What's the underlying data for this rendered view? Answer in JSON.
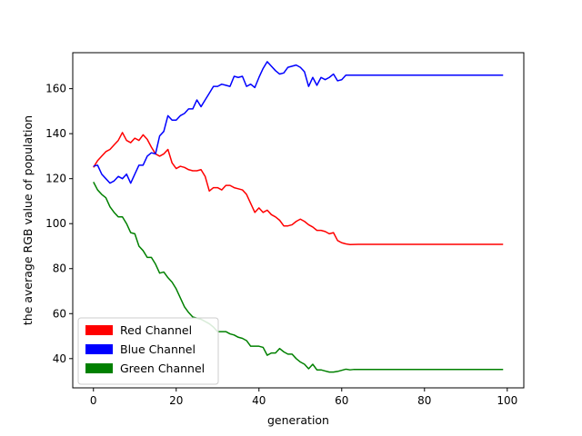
{
  "chart_data": {
    "type": "line",
    "title": "",
    "xlabel": "generation",
    "ylabel": "the average RGB value of population",
    "xlim": [
      -5,
      104
    ],
    "ylim": [
      27,
      176
    ],
    "xticks": [
      0,
      20,
      40,
      60,
      80,
      100
    ],
    "yticks": [
      40,
      60,
      80,
      100,
      120,
      140,
      160
    ],
    "grid": false,
    "legend_position": "lower-left",
    "series": [
      {
        "name": "Red Channel",
        "color": "#ff0000",
        "points": [
          [
            0,
            125
          ],
          [
            1,
            128
          ],
          [
            2,
            130
          ],
          [
            3,
            132
          ],
          [
            4,
            133
          ],
          [
            5,
            135
          ],
          [
            6,
            137
          ],
          [
            7,
            140.5
          ],
          [
            8,
            137
          ],
          [
            9,
            136
          ],
          [
            10,
            138
          ],
          [
            11,
            137
          ],
          [
            12,
            139.5
          ],
          [
            13,
            137.5
          ],
          [
            14,
            134
          ],
          [
            15,
            131
          ],
          [
            16,
            130
          ],
          [
            17,
            131
          ],
          [
            18,
            133
          ],
          [
            19,
            127
          ],
          [
            20,
            124.5
          ],
          [
            21,
            125.5
          ],
          [
            22,
            125
          ],
          [
            23,
            124
          ],
          [
            24,
            123.5
          ],
          [
            25,
            123.5
          ],
          [
            26,
            124
          ],
          [
            27,
            121
          ],
          [
            28,
            114.5
          ],
          [
            29,
            116
          ],
          [
            30,
            116
          ],
          [
            31,
            115
          ],
          [
            32,
            117
          ],
          [
            33,
            117
          ],
          [
            34,
            116
          ],
          [
            35,
            115.5
          ],
          [
            36,
            115
          ],
          [
            37,
            113
          ],
          [
            38,
            109
          ],
          [
            39,
            105
          ],
          [
            40,
            107
          ],
          [
            41,
            105
          ],
          [
            42,
            106
          ],
          [
            43,
            104
          ],
          [
            44,
            103
          ],
          [
            45,
            101.5
          ],
          [
            46,
            99
          ],
          [
            47,
            99
          ],
          [
            48,
            99.5
          ],
          [
            49,
            101
          ],
          [
            50,
            102
          ],
          [
            51,
            101
          ],
          [
            52,
            99.5
          ],
          [
            53,
            98.5
          ],
          [
            54,
            97
          ],
          [
            55,
            97
          ],
          [
            56,
            96.5
          ],
          [
            57,
            95.5
          ],
          [
            58,
            96
          ],
          [
            59,
            92.5
          ],
          [
            60,
            91.5
          ],
          [
            61,
            91
          ],
          [
            62,
            90.7
          ],
          [
            64,
            90.8
          ],
          [
            70,
            90.8
          ],
          [
            80,
            90.8
          ],
          [
            90,
            90.8
          ],
          [
            99,
            90.8
          ]
        ]
      },
      {
        "name": "Blue Channel",
        "color": "#0000ff",
        "points": [
          [
            0,
            125.5
          ],
          [
            1,
            126
          ],
          [
            2,
            122
          ],
          [
            3,
            120
          ],
          [
            4,
            118
          ],
          [
            5,
            119
          ],
          [
            6,
            121
          ],
          [
            7,
            120
          ],
          [
            8,
            122
          ],
          [
            9,
            118
          ],
          [
            10,
            122
          ],
          [
            11,
            126
          ],
          [
            12,
            126
          ],
          [
            13,
            130
          ],
          [
            14,
            131.5
          ],
          [
            15,
            131
          ],
          [
            16,
            139
          ],
          [
            17,
            141
          ],
          [
            18,
            148
          ],
          [
            19,
            146
          ],
          [
            20,
            146
          ],
          [
            21,
            148
          ],
          [
            22,
            149
          ],
          [
            23,
            151
          ],
          [
            24,
            151
          ],
          [
            25,
            155
          ],
          [
            26,
            152
          ],
          [
            27,
            155
          ],
          [
            28,
            158
          ],
          [
            29,
            161
          ],
          [
            30,
            161
          ],
          [
            31,
            162
          ],
          [
            32,
            161.5
          ],
          [
            33,
            161
          ],
          [
            34,
            165.5
          ],
          [
            35,
            165
          ],
          [
            36,
            165.5
          ],
          [
            37,
            161
          ],
          [
            38,
            162
          ],
          [
            39,
            160.5
          ],
          [
            40,
            165
          ],
          [
            41,
            169
          ],
          [
            42,
            172
          ],
          [
            43,
            170
          ],
          [
            44,
            168
          ],
          [
            45,
            166.5
          ],
          [
            46,
            167
          ],
          [
            47,
            169.5
          ],
          [
            48,
            170
          ],
          [
            49,
            170.5
          ],
          [
            50,
            169.5
          ],
          [
            51,
            167.5
          ],
          [
            52,
            161
          ],
          [
            53,
            165
          ],
          [
            54,
            161.5
          ],
          [
            55,
            165
          ],
          [
            56,
            164
          ],
          [
            57,
            165
          ],
          [
            58,
            166.5
          ],
          [
            59,
            163.5
          ],
          [
            60,
            164
          ],
          [
            61,
            166
          ],
          [
            62,
            166
          ],
          [
            70,
            166
          ],
          [
            80,
            166
          ],
          [
            90,
            166
          ],
          [
            99,
            166
          ]
        ]
      },
      {
        "name": "Green Channel",
        "color": "#008000",
        "points": [
          [
            0,
            118.5
          ],
          [
            1,
            115
          ],
          [
            2,
            113
          ],
          [
            3,
            111.5
          ],
          [
            4,
            107.5
          ],
          [
            5,
            105
          ],
          [
            6,
            103
          ],
          [
            7,
            103
          ],
          [
            8,
            100
          ],
          [
            9,
            96
          ],
          [
            10,
            95.5
          ],
          [
            11,
            90
          ],
          [
            12,
            88
          ],
          [
            13,
            85
          ],
          [
            14,
            85
          ],
          [
            15,
            82
          ],
          [
            16,
            78
          ],
          [
            17,
            78.5
          ],
          [
            18,
            76
          ],
          [
            19,
            74
          ],
          [
            20,
            71
          ],
          [
            21,
            67
          ],
          [
            22,
            63
          ],
          [
            23,
            60.5
          ],
          [
            24,
            58.5
          ],
          [
            25,
            58
          ],
          [
            26,
            57.5
          ],
          [
            27,
            56.5
          ],
          [
            28,
            55.5
          ],
          [
            29,
            54
          ],
          [
            30,
            52
          ],
          [
            31,
            52
          ],
          [
            32,
            52
          ],
          [
            33,
            51
          ],
          [
            34,
            50.5
          ],
          [
            35,
            49.5
          ],
          [
            36,
            49
          ],
          [
            37,
            48
          ],
          [
            38,
            45.5
          ],
          [
            39,
            45.5
          ],
          [
            40,
            45.5
          ],
          [
            41,
            45
          ],
          [
            42,
            41.5
          ],
          [
            43,
            42.5
          ],
          [
            44,
            42.5
          ],
          [
            45,
            44.5
          ],
          [
            46,
            43
          ],
          [
            47,
            42
          ],
          [
            48,
            42
          ],
          [
            49,
            40
          ],
          [
            50,
            38.5
          ],
          [
            51,
            37.5
          ],
          [
            52,
            35.5
          ],
          [
            53,
            37.5
          ],
          [
            54,
            35
          ],
          [
            55,
            35
          ],
          [
            56,
            34.5
          ],
          [
            57,
            34
          ],
          [
            58,
            34
          ],
          [
            59,
            34.3
          ],
          [
            60,
            34.8
          ],
          [
            61,
            35.3
          ],
          [
            62,
            35
          ],
          [
            63,
            35.2
          ],
          [
            70,
            35.2
          ],
          [
            80,
            35.2
          ],
          [
            90,
            35.2
          ],
          [
            99,
            35.2
          ]
        ]
      }
    ]
  }
}
